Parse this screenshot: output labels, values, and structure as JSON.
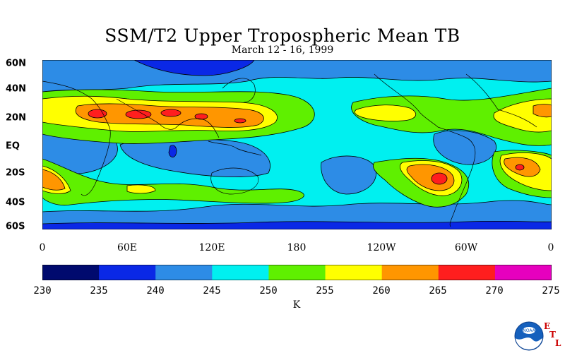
{
  "title": "SSM/T2 Upper Tropospheric Mean TB",
  "subtitle": "March 12 - 16, 1999",
  "lat_labels": [
    "60N",
    "40N",
    "20N",
    "EQ",
    "20S",
    "40S",
    "60S"
  ],
  "lon_labels": [
    "0",
    "60E",
    "120E",
    "180",
    "120W",
    "60W",
    "0"
  ],
  "colorbar": {
    "ticks": [
      "230",
      "235",
      "240",
      "245",
      "250",
      "255",
      "260",
      "265",
      "270",
      "275"
    ],
    "colors": [
      "#000a6e",
      "#0a28e6",
      "#2d8ce6",
      "#00f0f0",
      "#5ff000",
      "#ffff00",
      "#ff9600",
      "#ff1e1e",
      "#e600be"
    ],
    "unit": "K"
  },
  "logo": {
    "name": "NOAA",
    "letters": [
      "E",
      "T",
      "L"
    ]
  }
}
